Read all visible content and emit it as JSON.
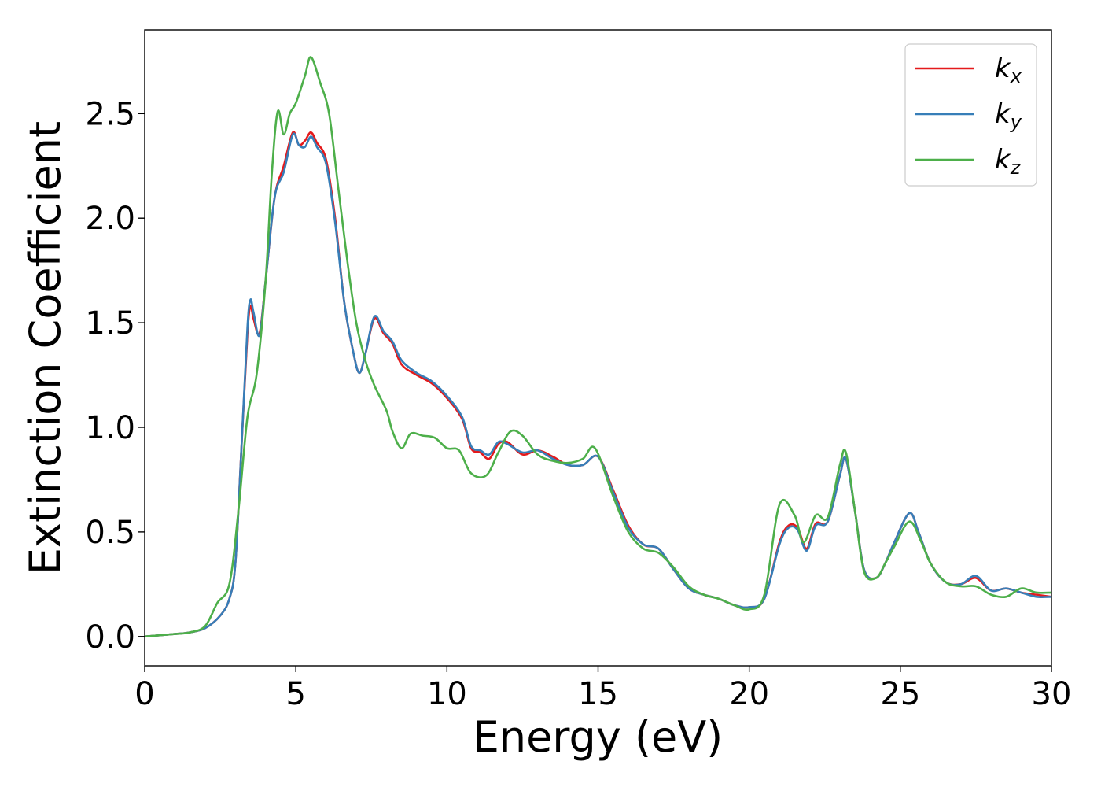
{
  "chart_data": {
    "type": "line",
    "xlabel": "Energy (eV)",
    "ylabel": "Extinction Coefficient",
    "xlim": [
      0,
      30
    ],
    "ylim": [
      -0.14,
      2.9
    ],
    "xticks": [
      0,
      5,
      10,
      15,
      20,
      25,
      30
    ],
    "yticks": [
      0.0,
      0.5,
      1.0,
      1.5,
      2.0,
      2.5
    ],
    "xtick_labels": [
      "0",
      "5",
      "10",
      "15",
      "20",
      "25",
      "30"
    ],
    "ytick_labels": [
      "0.0",
      "0.5",
      "1.0",
      "1.5",
      "2.0",
      "2.5"
    ],
    "grid": false,
    "legend_position": "top-right",
    "series": [
      {
        "name": "k_x",
        "label_base": "k",
        "label_sub": "x",
        "color": "#e41a1c",
        "points": [
          [
            0,
            0
          ],
          [
            1,
            0.012
          ],
          [
            1.5,
            0.02
          ],
          [
            2,
            0.04
          ],
          [
            2.5,
            0.1
          ],
          [
            2.8,
            0.18
          ],
          [
            3,
            0.35
          ],
          [
            3.2,
            0.9
          ],
          [
            3.4,
            1.45
          ],
          [
            3.5,
            1.58
          ],
          [
            3.6,
            1.52
          ],
          [
            3.8,
            1.45
          ],
          [
            4,
            1.7
          ],
          [
            4.3,
            2.1
          ],
          [
            4.6,
            2.25
          ],
          [
            4.9,
            2.41
          ],
          [
            5.1,
            2.35
          ],
          [
            5.3,
            2.37
          ],
          [
            5.5,
            2.41
          ],
          [
            5.7,
            2.36
          ],
          [
            6,
            2.28
          ],
          [
            6.3,
            2.0
          ],
          [
            6.6,
            1.6
          ],
          [
            6.9,
            1.36
          ],
          [
            7.1,
            1.26
          ],
          [
            7.3,
            1.35
          ],
          [
            7.6,
            1.52
          ],
          [
            7.9,
            1.45
          ],
          [
            8.2,
            1.4
          ],
          [
            8.5,
            1.3
          ],
          [
            9,
            1.25
          ],
          [
            9.5,
            1.21
          ],
          [
            10,
            1.14
          ],
          [
            10.5,
            1.04
          ],
          [
            10.8,
            0.9
          ],
          [
            11.1,
            0.88
          ],
          [
            11.4,
            0.85
          ],
          [
            11.7,
            0.92
          ],
          [
            12,
            0.93
          ],
          [
            12.5,
            0.87
          ],
          [
            13,
            0.89
          ],
          [
            13.5,
            0.86
          ],
          [
            14,
            0.82
          ],
          [
            14.5,
            0.82
          ],
          [
            15,
            0.86
          ],
          [
            15.5,
            0.7
          ],
          [
            16,
            0.53
          ],
          [
            16.5,
            0.44
          ],
          [
            17,
            0.42
          ],
          [
            17.5,
            0.32
          ],
          [
            18,
            0.23
          ],
          [
            18.5,
            0.2
          ],
          [
            19,
            0.18
          ],
          [
            19.5,
            0.15
          ],
          [
            20,
            0.14
          ],
          [
            20.5,
            0.18
          ],
          [
            21,
            0.45
          ],
          [
            21.3,
            0.53
          ],
          [
            21.6,
            0.52
          ],
          [
            21.9,
            0.42
          ],
          [
            22.2,
            0.54
          ],
          [
            22.6,
            0.55
          ],
          [
            23,
            0.77
          ],
          [
            23.2,
            0.85
          ],
          [
            23.5,
            0.6
          ],
          [
            23.8,
            0.32
          ],
          [
            24.2,
            0.28
          ],
          [
            24.5,
            0.35
          ],
          [
            24.8,
            0.45
          ],
          [
            25.3,
            0.59
          ],
          [
            25.6,
            0.5
          ],
          [
            26,
            0.35
          ],
          [
            26.5,
            0.26
          ],
          [
            27,
            0.25
          ],
          [
            27.5,
            0.28
          ],
          [
            28,
            0.22
          ],
          [
            28.5,
            0.23
          ],
          [
            29,
            0.21
          ],
          [
            29.5,
            0.2
          ],
          [
            30,
            0.19
          ]
        ]
      },
      {
        "name": "k_y",
        "label_base": "k",
        "label_sub": "y",
        "color": "#377eb8",
        "points": [
          [
            0,
            0
          ],
          [
            1,
            0.012
          ],
          [
            1.5,
            0.02
          ],
          [
            2,
            0.04
          ],
          [
            2.5,
            0.1
          ],
          [
            2.8,
            0.18
          ],
          [
            3,
            0.35
          ],
          [
            3.2,
            0.9
          ],
          [
            3.4,
            1.48
          ],
          [
            3.5,
            1.61
          ],
          [
            3.6,
            1.55
          ],
          [
            3.8,
            1.44
          ],
          [
            4,
            1.7
          ],
          [
            4.3,
            2.1
          ],
          [
            4.6,
            2.22
          ],
          [
            4.9,
            2.4
          ],
          [
            5.1,
            2.35
          ],
          [
            5.3,
            2.34
          ],
          [
            5.5,
            2.39
          ],
          [
            5.7,
            2.34
          ],
          [
            6,
            2.26
          ],
          [
            6.3,
            1.98
          ],
          [
            6.6,
            1.6
          ],
          [
            6.9,
            1.36
          ],
          [
            7.1,
            1.26
          ],
          [
            7.3,
            1.35
          ],
          [
            7.6,
            1.53
          ],
          [
            7.9,
            1.46
          ],
          [
            8.2,
            1.41
          ],
          [
            8.5,
            1.32
          ],
          [
            9,
            1.26
          ],
          [
            9.5,
            1.22
          ],
          [
            10,
            1.15
          ],
          [
            10.5,
            1.05
          ],
          [
            10.8,
            0.91
          ],
          [
            11.1,
            0.89
          ],
          [
            11.4,
            0.87
          ],
          [
            11.7,
            0.93
          ],
          [
            12,
            0.92
          ],
          [
            12.5,
            0.88
          ],
          [
            13,
            0.89
          ],
          [
            13.5,
            0.85
          ],
          [
            14,
            0.82
          ],
          [
            14.5,
            0.82
          ],
          [
            15,
            0.86
          ],
          [
            15.5,
            0.69
          ],
          [
            16,
            0.52
          ],
          [
            16.5,
            0.44
          ],
          [
            17,
            0.42
          ],
          [
            17.5,
            0.32
          ],
          [
            18,
            0.23
          ],
          [
            18.5,
            0.2
          ],
          [
            19,
            0.18
          ],
          [
            19.5,
            0.15
          ],
          [
            20,
            0.14
          ],
          [
            20.5,
            0.18
          ],
          [
            21,
            0.44
          ],
          [
            21.3,
            0.52
          ],
          [
            21.6,
            0.51
          ],
          [
            21.9,
            0.41
          ],
          [
            22.2,
            0.53
          ],
          [
            22.6,
            0.55
          ],
          [
            23,
            0.77
          ],
          [
            23.2,
            0.85
          ],
          [
            23.5,
            0.6
          ],
          [
            23.8,
            0.32
          ],
          [
            24.2,
            0.28
          ],
          [
            24.5,
            0.35
          ],
          [
            24.8,
            0.45
          ],
          [
            25.3,
            0.59
          ],
          [
            25.6,
            0.5
          ],
          [
            26,
            0.35
          ],
          [
            26.5,
            0.26
          ],
          [
            27,
            0.25
          ],
          [
            27.5,
            0.29
          ],
          [
            28,
            0.22
          ],
          [
            28.5,
            0.23
          ],
          [
            29,
            0.21
          ],
          [
            29.5,
            0.19
          ],
          [
            30,
            0.19
          ]
        ]
      },
      {
        "name": "k_z",
        "label_base": "k",
        "label_sub": "z",
        "color": "#4daf4a",
        "points": [
          [
            0,
            0
          ],
          [
            1,
            0.012
          ],
          [
            1.5,
            0.02
          ],
          [
            2,
            0.05
          ],
          [
            2.4,
            0.16
          ],
          [
            2.8,
            0.25
          ],
          [
            3.1,
            0.6
          ],
          [
            3.4,
            1.05
          ],
          [
            3.7,
            1.25
          ],
          [
            4,
            1.7
          ],
          [
            4.2,
            2.2
          ],
          [
            4.4,
            2.51
          ],
          [
            4.6,
            2.4
          ],
          [
            4.8,
            2.5
          ],
          [
            5,
            2.55
          ],
          [
            5.3,
            2.68
          ],
          [
            5.5,
            2.77
          ],
          [
            5.8,
            2.65
          ],
          [
            6.1,
            2.5
          ],
          [
            6.4,
            2.15
          ],
          [
            6.7,
            1.8
          ],
          [
            7,
            1.5
          ],
          [
            7.3,
            1.32
          ],
          [
            7.6,
            1.2
          ],
          [
            8,
            1.08
          ],
          [
            8.2,
            0.98
          ],
          [
            8.5,
            0.9
          ],
          [
            8.8,
            0.97
          ],
          [
            9.2,
            0.96
          ],
          [
            9.6,
            0.95
          ],
          [
            10,
            0.9
          ],
          [
            10.4,
            0.89
          ],
          [
            10.8,
            0.78
          ],
          [
            11.3,
            0.77
          ],
          [
            11.7,
            0.88
          ],
          [
            12.1,
            0.98
          ],
          [
            12.5,
            0.96
          ],
          [
            13,
            0.87
          ],
          [
            13.5,
            0.84
          ],
          [
            14,
            0.83
          ],
          [
            14.5,
            0.85
          ],
          [
            14.9,
            0.9
          ],
          [
            15.5,
            0.67
          ],
          [
            16,
            0.5
          ],
          [
            16.5,
            0.42
          ],
          [
            17,
            0.4
          ],
          [
            17.5,
            0.33
          ],
          [
            18,
            0.24
          ],
          [
            18.5,
            0.2
          ],
          [
            19,
            0.18
          ],
          [
            19.5,
            0.15
          ],
          [
            20,
            0.13
          ],
          [
            20.5,
            0.2
          ],
          [
            21,
            0.63
          ],
          [
            21.5,
            0.58
          ],
          [
            21.8,
            0.45
          ],
          [
            22.2,
            0.58
          ],
          [
            22.6,
            0.57
          ],
          [
            23,
            0.82
          ],
          [
            23.2,
            0.88
          ],
          [
            23.5,
            0.6
          ],
          [
            23.8,
            0.31
          ],
          [
            24.2,
            0.28
          ],
          [
            24.5,
            0.35
          ],
          [
            24.8,
            0.43
          ],
          [
            25.3,
            0.55
          ],
          [
            25.7,
            0.45
          ],
          [
            26,
            0.35
          ],
          [
            26.5,
            0.26
          ],
          [
            27,
            0.24
          ],
          [
            27.5,
            0.24
          ],
          [
            28,
            0.2
          ],
          [
            28.5,
            0.19
          ],
          [
            29,
            0.23
          ],
          [
            29.5,
            0.21
          ],
          [
            30,
            0.21
          ]
        ]
      }
    ]
  }
}
